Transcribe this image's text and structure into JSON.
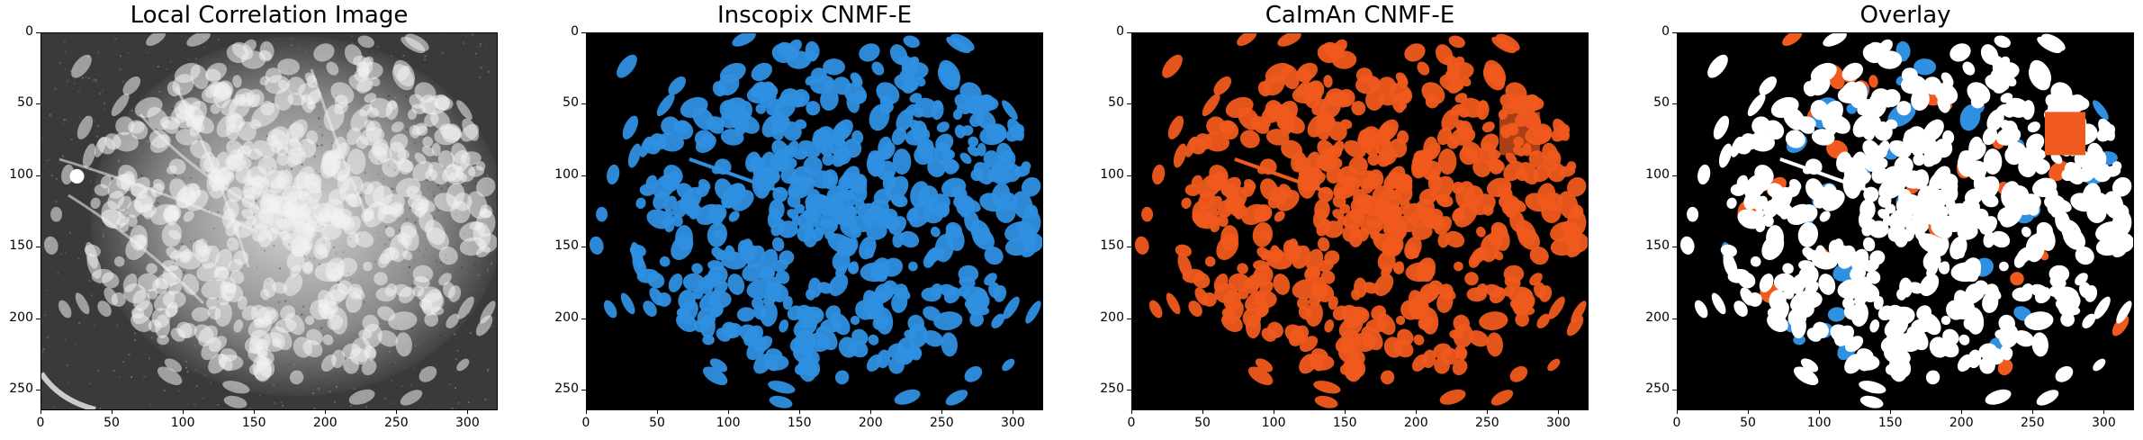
{
  "figure": {
    "panels": [
      {
        "title": "Local Correlation Image",
        "kind": "grayscale"
      },
      {
        "title": "Inscopix CNMF-E",
        "kind": "blue"
      },
      {
        "title": "CaImAn CNMF-E",
        "kind": "orange"
      },
      {
        "title": "Overlay",
        "kind": "overlay"
      }
    ],
    "x_ticks": [
      "0",
      "50",
      "100",
      "150",
      "200",
      "250",
      "300"
    ],
    "y_ticks": [
      "0",
      "50",
      "100",
      "150",
      "200",
      "250"
    ],
    "x_tick_values": [
      0,
      50,
      100,
      150,
      200,
      250,
      300
    ],
    "y_tick_values": [
      0,
      50,
      100,
      150,
      200,
      250
    ],
    "x_range": [
      0,
      320
    ],
    "y_range": [
      0,
      263
    ],
    "colors": {
      "inscopix": "#2f8fe0",
      "caiman": "#f05a1e",
      "overlay_fill": "#ffffff",
      "background": "#000000"
    }
  }
}
